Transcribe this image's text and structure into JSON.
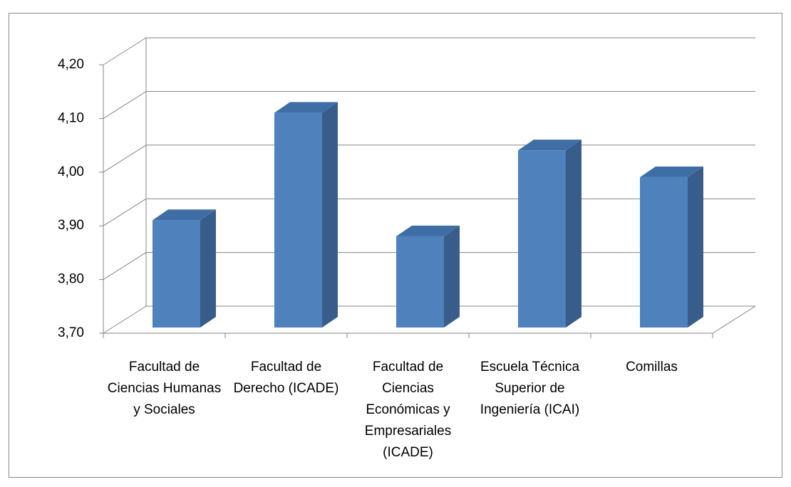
{
  "chart_data": {
    "type": "bar3d",
    "categories": [
      "Facultad de Ciencias Humanas y Sociales",
      "Facultad de Derecho (ICADE)",
      "Facultad de Ciencias Económicas y Empresariales (ICADE)",
      "Escuela Técnica Superior de Ingeniería (ICAI)",
      "Comillas"
    ],
    "values": [
      3.9,
      4.1,
      3.87,
      4.03,
      3.98
    ],
    "color": "#4f81bd",
    "ylim": [
      3.7,
      4.2
    ],
    "yticks": [
      {
        "value": 3.7,
        "label": "3,70"
      },
      {
        "value": 3.8,
        "label": "3,80"
      },
      {
        "value": 3.9,
        "label": "3,90"
      },
      {
        "value": 4.0,
        "label": "4,00"
      },
      {
        "value": 4.1,
        "label": "4,10"
      },
      {
        "value": 4.2,
        "label": "4,20"
      }
    ],
    "grid": true
  }
}
